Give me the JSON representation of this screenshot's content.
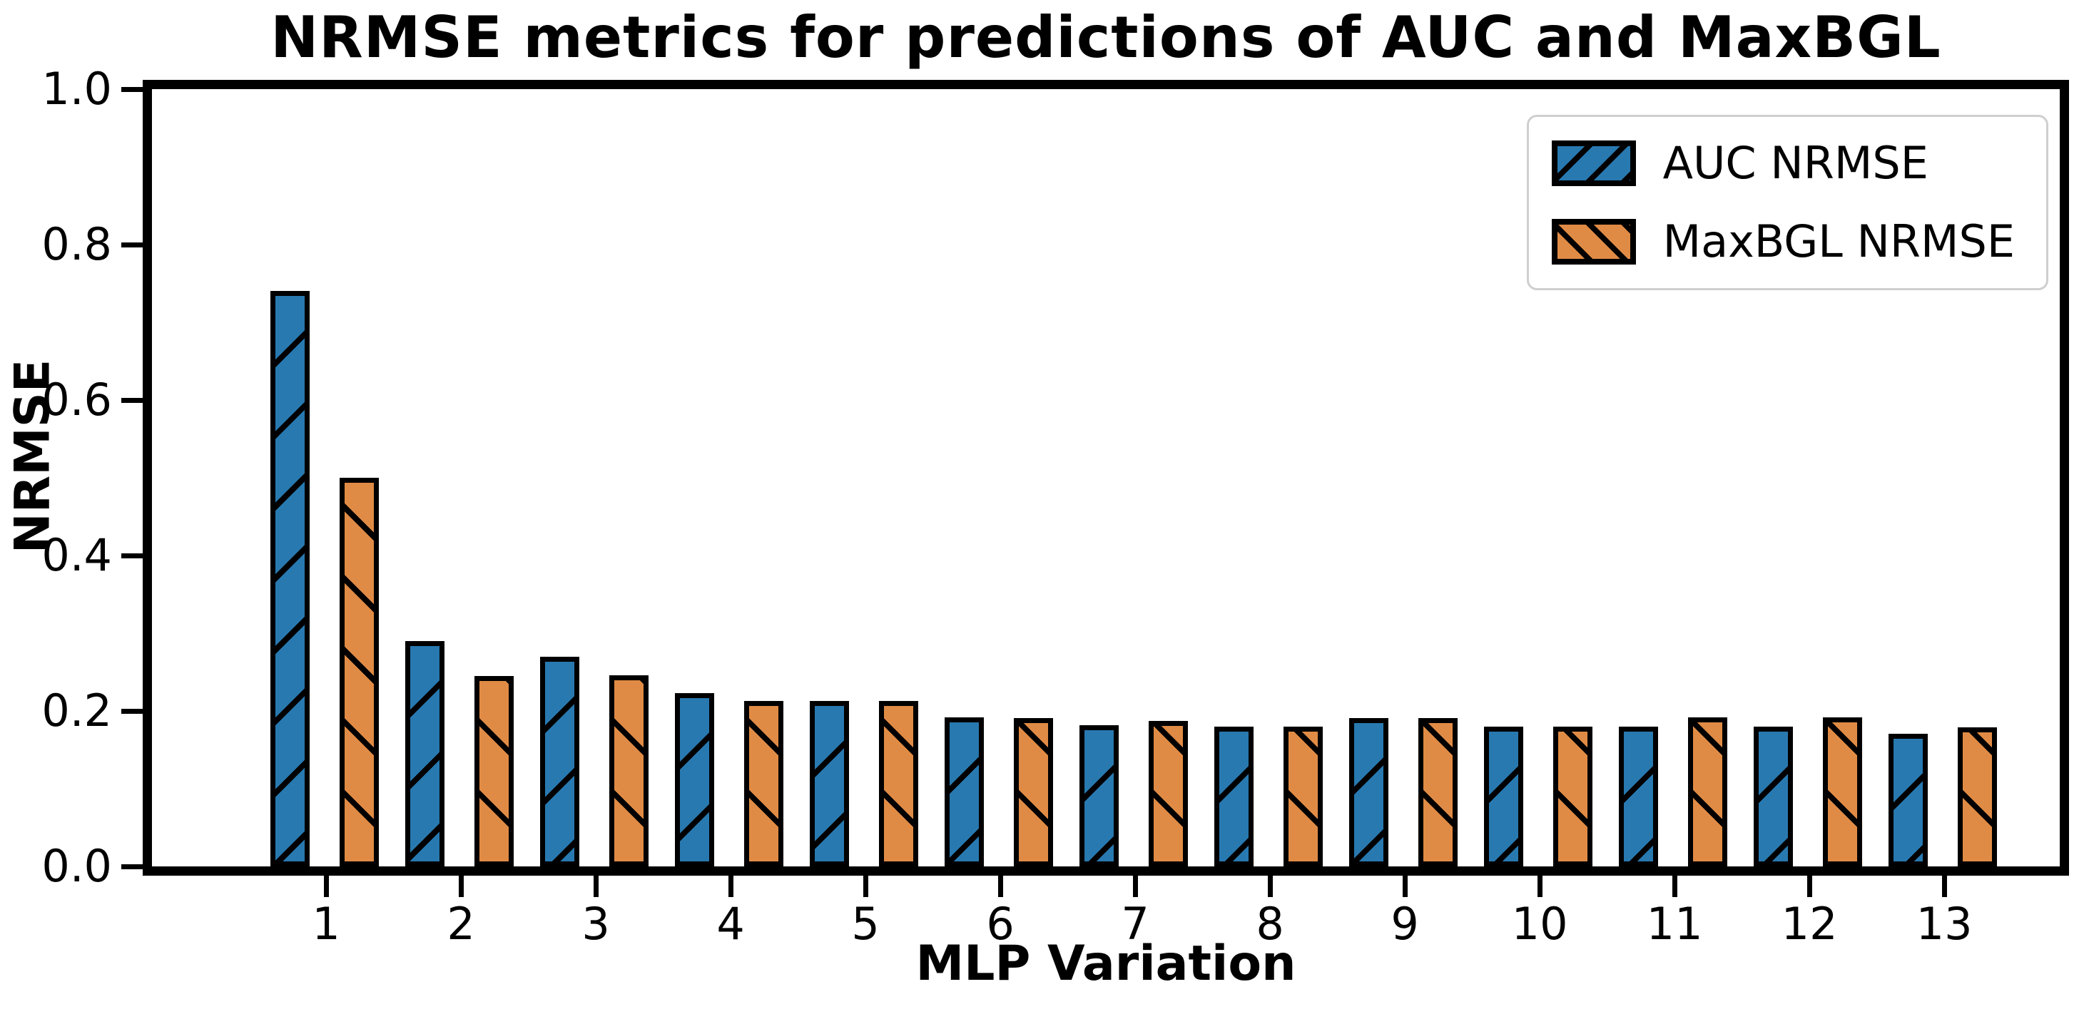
{
  "figure_title": "NRMSE metrics for predictions of AUC and MaxBGL",
  "chart_data": {
    "type": "bar",
    "title": "NRMSE metrics for predictions of AUC and MaxBGL",
    "xlabel": "MLP Variation",
    "ylabel": "NRMSE",
    "categories": [
      "1",
      "2",
      "3",
      "4",
      "5",
      "6",
      "7",
      "8",
      "9",
      "10",
      "11",
      "12",
      "13"
    ],
    "series": [
      {
        "name": "AUC NRMSE",
        "color": "#2879b0",
        "hatch": "/",
        "values": [
          0.74,
          0.29,
          0.27,
          0.223,
          0.213,
          0.192,
          0.182,
          0.18,
          0.191,
          0.18,
          0.18,
          0.18,
          0.171
        ]
      },
      {
        "name": "MaxBGL NRMSE",
        "color": "#e08b45",
        "hatch": "\\",
        "values": [
          0.5,
          0.245,
          0.246,
          0.213,
          0.213,
          0.191,
          0.187,
          0.18,
          0.191,
          0.18,
          0.192,
          0.192,
          0.179
        ]
      }
    ],
    "ylim": [
      0.0,
      1.0
    ],
    "ytick_labels": [
      "0.0",
      "0.2",
      "0.4",
      "0.6",
      "0.8",
      "1.0"
    ],
    "bar_edge_color": "#000000",
    "grid": false,
    "legend_position": "upper right",
    "background": "#ffffff"
  },
  "legend": {
    "items": [
      {
        "label": "AUC NRMSE"
      },
      {
        "label": "MaxBGL NRMSE"
      }
    ]
  }
}
